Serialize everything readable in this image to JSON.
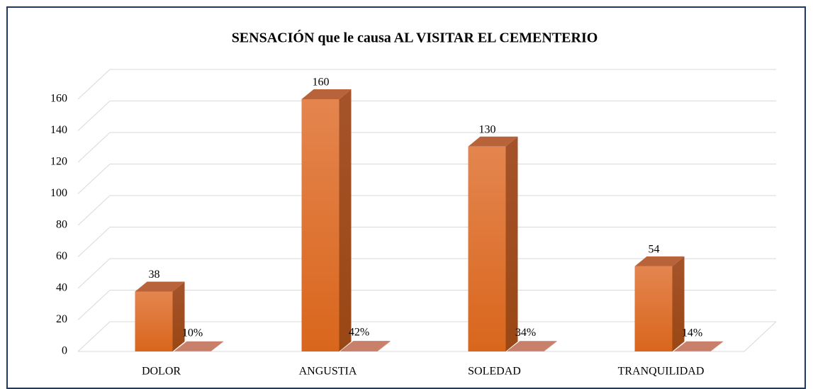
{
  "chart_data": {
    "type": "bar3d",
    "title": "SENSACIÓN que le causa AL VISITAR EL CEMENTERIO",
    "categories": [
      "DOLOR",
      "ANGUSTIA",
      "SOLEDAD",
      "TRANQUILIDAD"
    ],
    "series": [
      {
        "color": "#e06b22",
        "values": [
          38,
          160,
          130,
          54
        ]
      },
      {
        "color": "#c9806a",
        "values": [
          0.1,
          0.42,
          0.34,
          0.14
        ],
        "value_labels": [
          "10%",
          "42%",
          "34%",
          "14%"
        ]
      }
    ],
    "ylim": [
      0,
      160
    ],
    "yticks": [
      0,
      20,
      40,
      60,
      80,
      100,
      120,
      140,
      160
    ],
    "grid": true
  }
}
